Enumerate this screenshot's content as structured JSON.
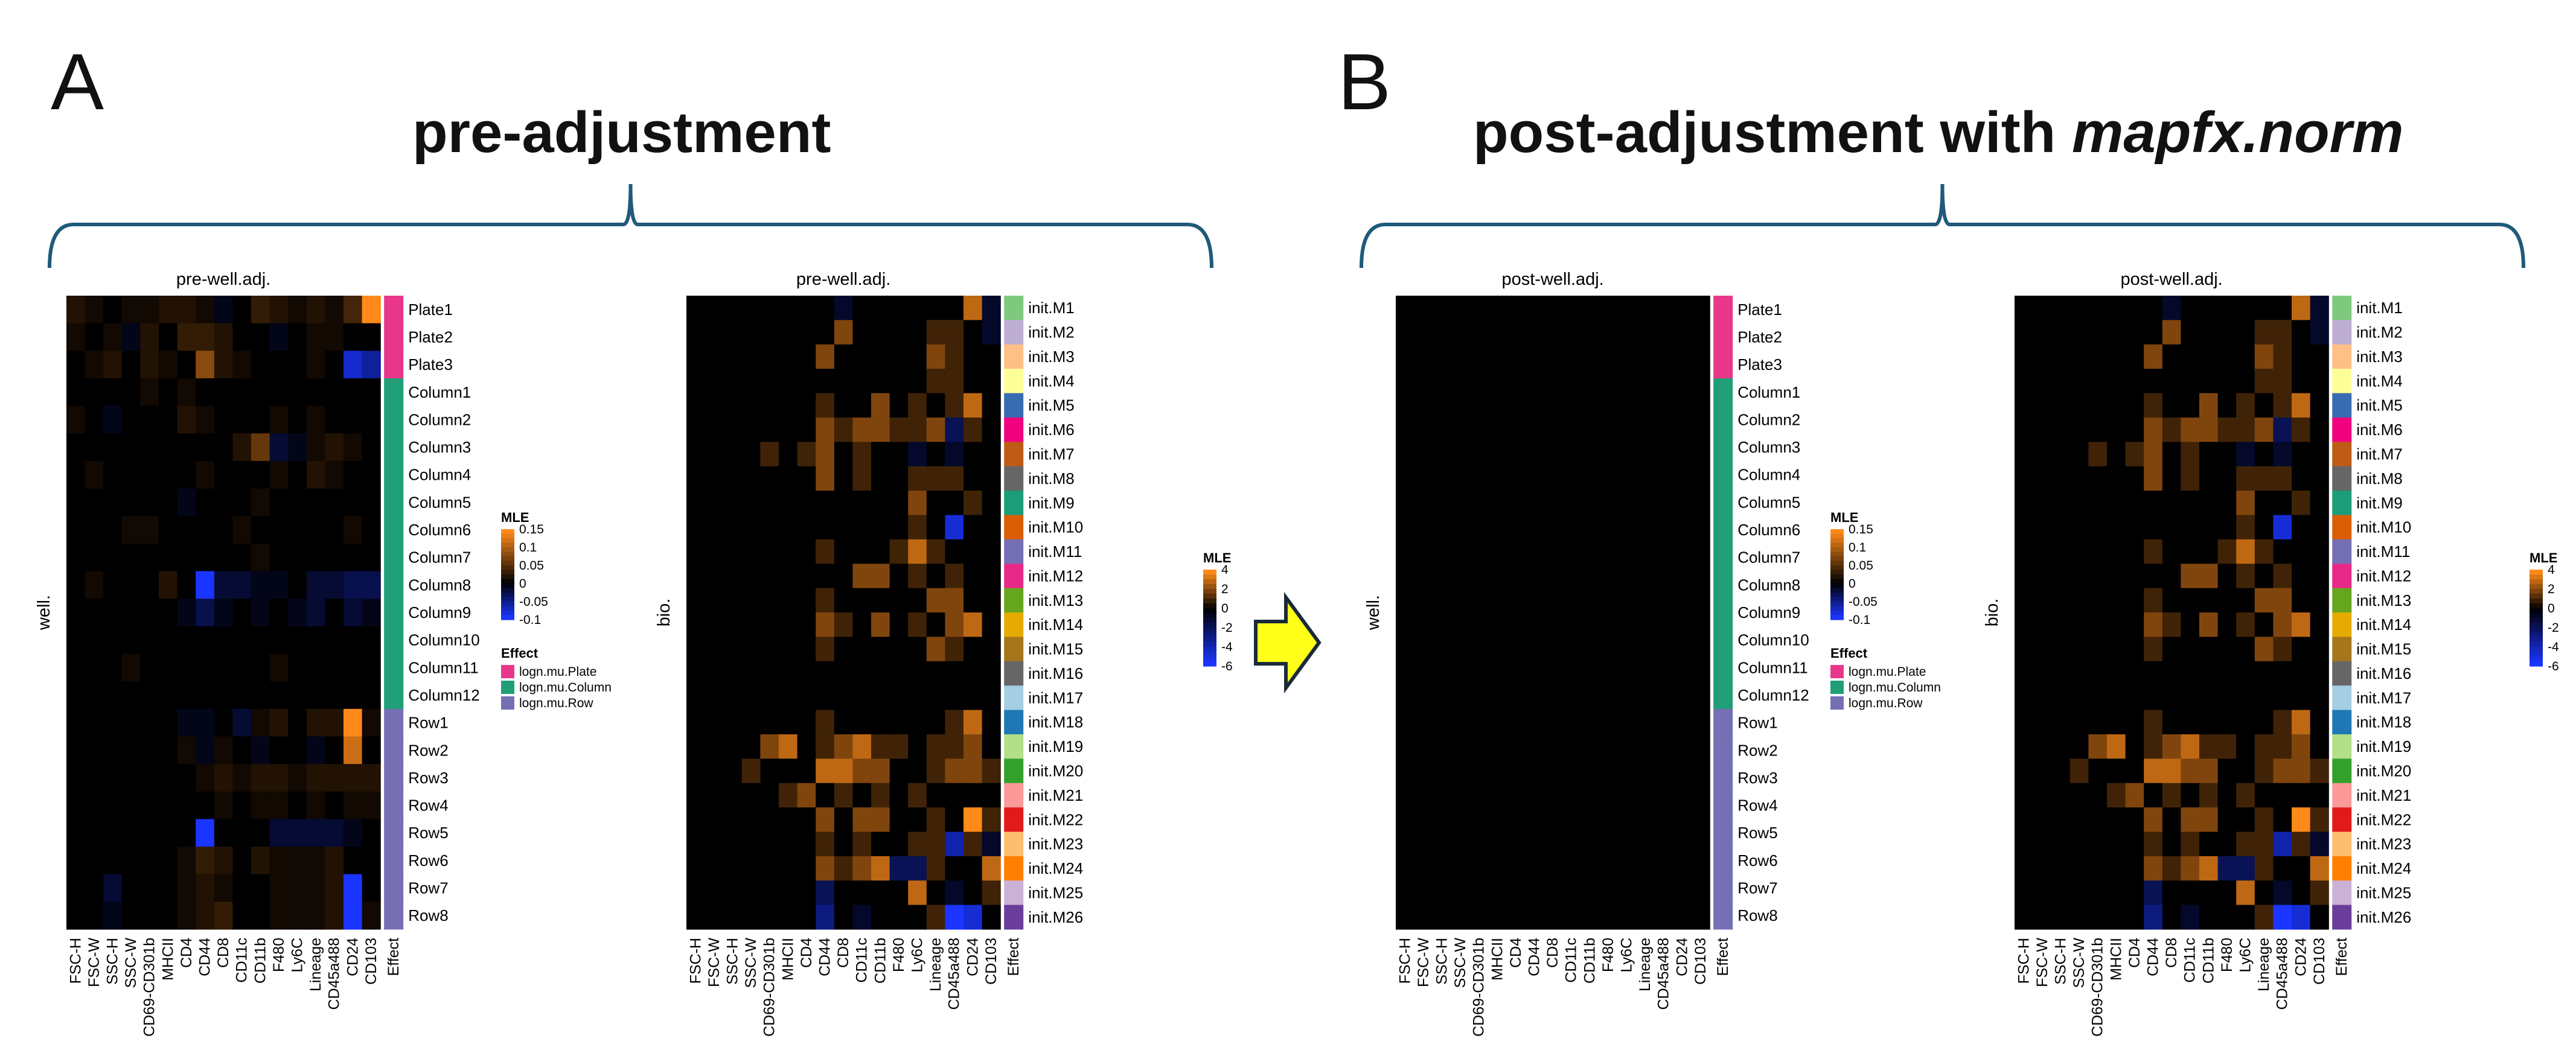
{
  "panel_a": {
    "letter": "A",
    "title": "pre-adjustment"
  },
  "panel_b": {
    "letter": "B",
    "title_prefix": "post-adjustment with ",
    "title_italic": "mapfx.norm"
  },
  "colors": {
    "low": "#1a35ff",
    "mid": "#000000",
    "high": "#ff8a1a",
    "bracket": "#1f5a7a",
    "arrow_fill": "#ffff1a",
    "arrow_stroke": "#1a2a3a",
    "effect_plate": "#e8378a",
    "effect_column": "#1f9e77",
    "effect_row": "#7570b3"
  },
  "markers": [
    "FSC-H",
    "FSC-W",
    "SSC-H",
    "SSC-W",
    "CD69-CD301b",
    "MHCII",
    "CD4",
    "CD44",
    "CD8",
    "CD11c",
    "CD11b",
    "F480",
    "Ly6C",
    "Lineage",
    "CD45a488",
    "CD24",
    "CD103"
  ],
  "effect_col_label": "Effect",
  "well_rows": [
    "Plate1",
    "Plate2",
    "Plate3",
    "Column1",
    "Column2",
    "Column3",
    "Column4",
    "Column5",
    "Column6",
    "Column7",
    "Column8",
    "Column9",
    "Column10",
    "Column11",
    "Column12",
    "Row1",
    "Row2",
    "Row3",
    "Row4",
    "Row5",
    "Row6",
    "Row7",
    "Row8"
  ],
  "bio_rows": [
    "init.M1",
    "init.M2",
    "init.M3",
    "init.M4",
    "init.M5",
    "init.M6",
    "init.M7",
    "init.M8",
    "init.M9",
    "init.M10",
    "init.M11",
    "init.M12",
    "init.M13",
    "init.M14",
    "init.M15",
    "init.M16",
    "init.M17",
    "init.M18",
    "init.M19",
    "init.M20",
    "init.M21",
    "init.M22",
    "init.M23",
    "init.M24",
    "init.M25",
    "init.M26"
  ],
  "bio_effect_colors": [
    "#7fc97f",
    "#beaed4",
    "#fdc086",
    "#ffff99",
    "#386cb0",
    "#f0027f",
    "#bf5b17",
    "#666666",
    "#1b9e77",
    "#d95f02",
    "#7570b3",
    "#e7298a",
    "#66a61e",
    "#e6ab02",
    "#a6761d",
    "#666666",
    "#a6cee3",
    "#1f78b4",
    "#b2df8a",
    "#33a02c",
    "#fb9a99",
    "#e31a1c",
    "#fdbf6f",
    "#ff7f00",
    "#cab2d6",
    "#6a3d9a"
  ],
  "legend_well": {
    "title": "MLE",
    "ticks": [
      "0.15",
      "0.1",
      "0.05",
      "0",
      "-0.05",
      "-0.1"
    ],
    "range": [
      -0.1,
      0.15
    ]
  },
  "legend_bio": {
    "title": "MLE",
    "ticks": [
      "4",
      "2",
      "0",
      "-2",
      "-4",
      "-6"
    ],
    "range": [
      -6,
      4
    ]
  },
  "legend_effect": {
    "title": "Effect",
    "items": [
      "logn.mu.Plate",
      "logn.mu.Column",
      "logn.mu.Row"
    ]
  },
  "chart_data": [
    {
      "type": "heatmap",
      "title": "pre-well.adj.",
      "ylabel": "well.",
      "rows": "well_rows",
      "columns": "markers",
      "scale": "legend_well",
      "values": [
        [
          0.02,
          0.01,
          0.0,
          0.01,
          0.01,
          0.02,
          0.02,
          0.01,
          -0.01,
          0.0,
          0.03,
          0.02,
          0.01,
          0.02,
          0.01,
          0.04,
          0.15
        ],
        [
          0.01,
          0.0,
          0.01,
          -0.01,
          0.02,
          0.0,
          0.03,
          0.03,
          0.02,
          0.0,
          0.0,
          -0.01,
          0.0,
          0.01,
          0.01,
          0.0,
          0.0
        ],
        [
          0.0,
          0.01,
          0.02,
          0.0,
          0.02,
          0.01,
          0.0,
          0.08,
          0.02,
          0.01,
          0.0,
          0.0,
          0.0,
          0.01,
          0.0,
          -0.08,
          -0.06
        ],
        [
          0.0,
          0.0,
          0.0,
          0.0,
          0.01,
          0.0,
          0.01,
          0.0,
          0.0,
          0.0,
          0.0,
          0.0,
          0.0,
          0.0,
          0.0,
          0.0,
          0.0
        ],
        [
          0.01,
          0.0,
          -0.01,
          0.0,
          0.0,
          0.0,
          0.02,
          0.01,
          0.0,
          0.0,
          0.0,
          0.01,
          0.0,
          0.01,
          0.0,
          0.0,
          0.0
        ],
        [
          0.0,
          0.0,
          0.0,
          0.0,
          0.0,
          0.0,
          0.0,
          0.0,
          0.0,
          0.02,
          0.06,
          -0.02,
          -0.01,
          0.01,
          0.02,
          0.01,
          0.0
        ],
        [
          0.0,
          0.01,
          0.0,
          0.0,
          0.0,
          0.0,
          0.0,
          0.01,
          0.0,
          0.0,
          0.0,
          0.01,
          0.0,
          0.02,
          0.01,
          0.0,
          0.0
        ],
        [
          0.0,
          0.0,
          0.0,
          0.0,
          0.0,
          0.0,
          -0.01,
          0.0,
          0.0,
          0.0,
          0.01,
          0.0,
          0.0,
          0.0,
          0.0,
          0.0,
          0.0
        ],
        [
          0.0,
          0.0,
          0.0,
          0.01,
          0.01,
          0.0,
          0.0,
          0.0,
          0.0,
          0.01,
          0.0,
          0.0,
          0.0,
          0.0,
          0.0,
          0.01,
          0.0
        ],
        [
          0.0,
          0.0,
          0.0,
          0.0,
          0.0,
          0.0,
          0.0,
          0.0,
          0.0,
          0.0,
          0.01,
          0.0,
          0.0,
          0.0,
          0.0,
          0.0,
          0.0
        ],
        [
          0.0,
          0.01,
          0.0,
          0.0,
          0.0,
          0.02,
          0.0,
          -0.1,
          -0.02,
          -0.02,
          -0.01,
          -0.01,
          0.0,
          -0.02,
          -0.02,
          -0.03,
          -0.03
        ],
        [
          0.0,
          0.0,
          0.0,
          0.0,
          0.0,
          0.0,
          -0.01,
          -0.03,
          -0.01,
          0.0,
          -0.01,
          0.0,
          -0.01,
          -0.02,
          0.0,
          -0.02,
          -0.01
        ],
        [
          0.0,
          0.0,
          0.0,
          0.0,
          0.0,
          0.0,
          0.0,
          0.0,
          0.0,
          0.0,
          0.0,
          0.0,
          0.0,
          0.0,
          0.0,
          0.0,
          0.0
        ],
        [
          0.0,
          0.0,
          0.0,
          0.01,
          0.0,
          0.0,
          0.0,
          0.0,
          0.0,
          0.0,
          0.0,
          0.01,
          0.0,
          0.0,
          0.0,
          0.0,
          0.0
        ],
        [
          0.0,
          0.0,
          0.0,
          0.0,
          0.0,
          0.0,
          0.0,
          0.0,
          0.0,
          0.0,
          0.0,
          0.0,
          0.0,
          0.0,
          0.0,
          0.0,
          0.0
        ],
        [
          0.0,
          0.0,
          0.0,
          0.0,
          0.0,
          0.0,
          -0.01,
          -0.01,
          0.0,
          -0.02,
          0.01,
          0.02,
          0.0,
          0.02,
          0.02,
          0.15,
          0.01
        ],
        [
          0.0,
          0.0,
          0.0,
          0.0,
          0.0,
          0.0,
          0.01,
          -0.01,
          0.01,
          0.0,
          -0.01,
          0.0,
          0.0,
          -0.01,
          0.0,
          0.12,
          0.0
        ],
        [
          0.0,
          0.0,
          0.0,
          0.0,
          0.0,
          0.0,
          0.0,
          0.01,
          0.02,
          0.01,
          0.02,
          0.02,
          0.01,
          0.02,
          0.02,
          0.02,
          0.02
        ],
        [
          0.0,
          0.0,
          0.0,
          0.0,
          0.0,
          0.0,
          0.0,
          0.0,
          0.01,
          0.0,
          0.01,
          0.01,
          0.0,
          0.01,
          0.0,
          0.01,
          0.01
        ],
        [
          0.0,
          0.0,
          0.0,
          0.0,
          0.0,
          0.0,
          0.0,
          -0.1,
          0.0,
          0.0,
          0.0,
          -0.02,
          -0.02,
          -0.02,
          -0.02,
          -0.01,
          0.0
        ],
        [
          0.0,
          0.0,
          0.0,
          0.0,
          0.0,
          0.0,
          0.01,
          0.03,
          0.02,
          0.0,
          0.02,
          0.01,
          0.01,
          0.01,
          0.02,
          0.0,
          0.0
        ],
        [
          0.0,
          0.0,
          -0.02,
          0.0,
          0.0,
          0.0,
          0.01,
          0.02,
          0.01,
          0.0,
          0.0,
          0.01,
          0.01,
          0.01,
          0.02,
          -0.1,
          0.0
        ],
        [
          0.0,
          0.0,
          -0.01,
          0.0,
          0.0,
          0.0,
          0.01,
          0.02,
          0.03,
          0.0,
          0.0,
          0.01,
          0.01,
          0.01,
          0.02,
          -0.1,
          0.01
        ]
      ]
    },
    {
      "type": "heatmap",
      "title": "pre-well.adj.",
      "ylabel": "bio.",
      "rows": "bio_rows",
      "columns": "markers",
      "scale": "legend_bio",
      "values": [
        [
          0,
          0,
          0,
          0,
          0,
          0,
          0,
          0,
          -1,
          0,
          0,
          0,
          0,
          0,
          0,
          3,
          -1
        ],
        [
          0,
          0,
          0,
          0,
          0,
          0,
          0,
          0,
          2,
          0,
          0,
          0,
          0,
          1,
          1,
          0,
          -1
        ],
        [
          0,
          0,
          0,
          0,
          0,
          0,
          0,
          2,
          0,
          0,
          0,
          0,
          0,
          2,
          1,
          0,
          0
        ],
        [
          0,
          0,
          0,
          0,
          0,
          0,
          0,
          0,
          0,
          0,
          0,
          0,
          0,
          1,
          1,
          0,
          0
        ],
        [
          0,
          0,
          0,
          0,
          0,
          0,
          0,
          1,
          0,
          0,
          2,
          0,
          1,
          0,
          1,
          3,
          0
        ],
        [
          0,
          0,
          0,
          0,
          0,
          0,
          0,
          2,
          1,
          2,
          2,
          1,
          1,
          2,
          -2,
          1,
          0
        ],
        [
          0,
          0,
          0,
          0,
          1,
          0,
          1,
          2,
          0,
          1,
          0,
          0,
          -1,
          0,
          -1,
          0,
          0
        ],
        [
          0,
          0,
          0,
          0,
          0,
          0,
          0,
          2,
          0,
          1,
          0,
          0,
          1,
          1,
          1,
          0,
          0
        ],
        [
          0,
          0,
          0,
          0,
          0,
          0,
          0,
          0,
          0,
          0,
          0,
          0,
          2,
          0,
          0,
          1,
          0
        ],
        [
          0,
          0,
          0,
          0,
          0,
          0,
          0,
          0,
          0,
          0,
          0,
          0,
          1,
          0,
          -5,
          0,
          0
        ],
        [
          0,
          0,
          0,
          0,
          0,
          0,
          0,
          1,
          0,
          0,
          0,
          1,
          3,
          1,
          0,
          0,
          0
        ],
        [
          0,
          0,
          0,
          0,
          0,
          0,
          0,
          0,
          0,
          2,
          2,
          0,
          1,
          0,
          1,
          0,
          0
        ],
        [
          0,
          0,
          0,
          0,
          0,
          0,
          0,
          1,
          0,
          0,
          0,
          0,
          0,
          2,
          2,
          0,
          0
        ],
        [
          0,
          0,
          0,
          0,
          0,
          0,
          0,
          2,
          1,
          0,
          2,
          0,
          1,
          0,
          2,
          3,
          0
        ],
        [
          0,
          0,
          0,
          0,
          0,
          0,
          0,
          1,
          0,
          0,
          0,
          0,
          0,
          2,
          1,
          0,
          0
        ],
        [
          0,
          0,
          0,
          0,
          0,
          0,
          0,
          0,
          0,
          0,
          0,
          0,
          0,
          0,
          0,
          0,
          0
        ],
        [
          0,
          0,
          0,
          0,
          0,
          0,
          0,
          0,
          0,
          0,
          0,
          0,
          0,
          0,
          0,
          0,
          0
        ],
        [
          0,
          0,
          0,
          0,
          0,
          0,
          0,
          1,
          0,
          0,
          0,
          0,
          0,
          0,
          1,
          3,
          0
        ],
        [
          0,
          0,
          0,
          0,
          2,
          3,
          0,
          1,
          2,
          3,
          1,
          1,
          0,
          1,
          1,
          2,
          0
        ],
        [
          0,
          0,
          0,
          1,
          0,
          0,
          0,
          3,
          3,
          2,
          2,
          0,
          0,
          1,
          2,
          2,
          1
        ],
        [
          0,
          0,
          0,
          0,
          0,
          1,
          2,
          0,
          1,
          0,
          1,
          0,
          1,
          0,
          0,
          0,
          0
        ],
        [
          0,
          0,
          0,
          0,
          0,
          0,
          0,
          2,
          0,
          2,
          2,
          0,
          0,
          1,
          0,
          4,
          1
        ],
        [
          0,
          0,
          0,
          0,
          0,
          0,
          0,
          1,
          0,
          1,
          0,
          0,
          1,
          1,
          -4,
          1,
          -1
        ],
        [
          0,
          0,
          0,
          0,
          0,
          0,
          0,
          2,
          1,
          2,
          3,
          -2,
          -2,
          1,
          0,
          0,
          3
        ],
        [
          0,
          0,
          0,
          0,
          0,
          0,
          0,
          -2,
          0,
          0,
          0,
          0,
          3,
          0,
          -1,
          0,
          1
        ],
        [
          0,
          0,
          0,
          0,
          0,
          0,
          0,
          -3,
          0,
          -1,
          0,
          0,
          0,
          1,
          -6,
          -5,
          0
        ]
      ]
    },
    {
      "type": "heatmap",
      "title": "post-well.adj.",
      "ylabel": "well.",
      "rows": "well_rows",
      "columns": "markers",
      "scale": "legend_well",
      "values": "all 0 (uniform black)"
    },
    {
      "type": "heatmap",
      "title": "post-well.adj.",
      "ylabel": "bio.",
      "rows": "bio_rows",
      "columns": "markers",
      "scale": "legend_bio",
      "values": "same as pre-well.adj. bio. heatmap"
    }
  ]
}
